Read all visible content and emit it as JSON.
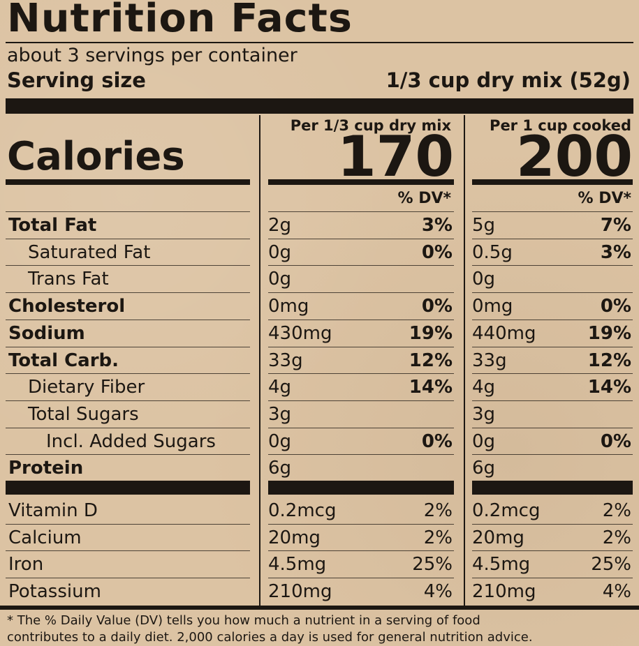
{
  "title": "Nutrition Facts",
  "servings_per_container": "about 3 servings per container",
  "serving_size_label": "Serving size",
  "serving_size_value": "1/3 cup dry mix (52g)",
  "columns": [
    {
      "header": "Per 1/3 cup dry mix",
      "calories": "170",
      "dv_header": "% DV*"
    },
    {
      "header": "Per 1 cup cooked",
      "calories": "200",
      "dv_header": "% DV*"
    }
  ],
  "calories_label": "Calories",
  "nutrients": [
    {
      "name": "Total Fat",
      "bold": true,
      "indent": 0,
      "c1_amount": "2g",
      "c1_dv": "3%",
      "c2_amount": "5g",
      "c2_dv": "7%"
    },
    {
      "name": "Saturated Fat",
      "bold": false,
      "indent": 1,
      "c1_amount": "0g",
      "c1_dv": "0%",
      "c2_amount": "0.5g",
      "c2_dv": "3%"
    },
    {
      "name": "Trans Fat",
      "bold": false,
      "indent": 1,
      "c1_amount": "0g",
      "c1_dv": "",
      "c2_amount": "0g",
      "c2_dv": ""
    },
    {
      "name": "Cholesterol",
      "bold": true,
      "indent": 0,
      "c1_amount": "0mg",
      "c1_dv": "0%",
      "c2_amount": "0mg",
      "c2_dv": "0%"
    },
    {
      "name": "Sodium",
      "bold": true,
      "indent": 0,
      "c1_amount": "430mg",
      "c1_dv": "19%",
      "c2_amount": "440mg",
      "c2_dv": "19%"
    },
    {
      "name": "Total Carb.",
      "bold": true,
      "indent": 0,
      "c1_amount": "33g",
      "c1_dv": "12%",
      "c2_amount": "33g",
      "c2_dv": "12%"
    },
    {
      "name": "Dietary Fiber",
      "bold": false,
      "indent": 1,
      "c1_amount": "4g",
      "c1_dv": "14%",
      "c2_amount": "4g",
      "c2_dv": "14%"
    },
    {
      "name": "Total Sugars",
      "bold": false,
      "indent": 1,
      "c1_amount": "3g",
      "c1_dv": "",
      "c2_amount": "3g",
      "c2_dv": ""
    },
    {
      "name": "Incl. Added Sugars",
      "bold": false,
      "indent": 2,
      "c1_amount": "0g",
      "c1_dv": "0%",
      "c2_amount": "0g",
      "c2_dv": "0%"
    },
    {
      "name": "Protein",
      "bold": true,
      "indent": 0,
      "c1_amount": "6g",
      "c1_dv": "",
      "c2_amount": "6g",
      "c2_dv": ""
    }
  ],
  "vitamins": [
    {
      "name": "Vitamin D",
      "c1_amount": "0.2mcg",
      "c1_dv": "2%",
      "c2_amount": "0.2mcg",
      "c2_dv": "2%"
    },
    {
      "name": "Calcium",
      "c1_amount": "20mg",
      "c1_dv": "2%",
      "c2_amount": "20mg",
      "c2_dv": "2%"
    },
    {
      "name": "Iron",
      "c1_amount": "4.5mg",
      "c1_dv": "25%",
      "c2_amount": "4.5mg",
      "c2_dv": "25%"
    },
    {
      "name": "Potassium",
      "c1_amount": "210mg",
      "c1_dv": "4%",
      "c2_amount": "210mg",
      "c2_dv": "4%"
    }
  ],
  "footnote_line1": "* The % Daily Value (DV) tells you how much a nutrient in a serving of food",
  "footnote_line2": "contributes to a daily diet. 2,000 calories a day is used for general nutrition advice."
}
